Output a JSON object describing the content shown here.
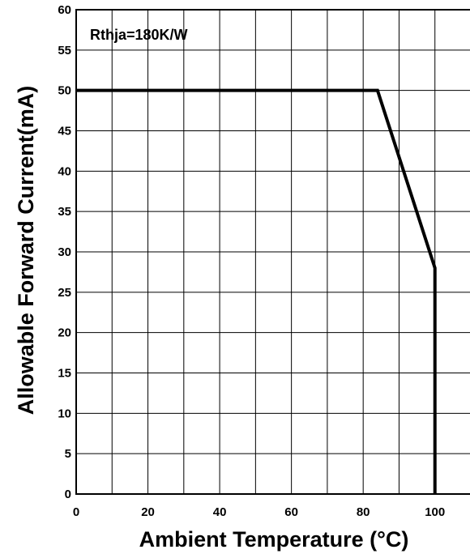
{
  "chart_data": {
    "type": "line",
    "xlabel": "Ambient Temperature (°C)",
    "ylabel": "Allowable Forward Current(mA)",
    "annotation": "Rthja=180K/W",
    "xlim": [
      0,
      110
    ],
    "ylim": [
      0,
      60
    ],
    "x_ticks": [
      0,
      20,
      40,
      60,
      80,
      100
    ],
    "y_ticks": [
      0,
      5,
      10,
      15,
      20,
      25,
      30,
      35,
      40,
      45,
      50,
      55,
      60
    ],
    "grid": true,
    "series": [
      {
        "x": [
          0,
          84,
          100,
          100
        ],
        "values": [
          50,
          50,
          28,
          0
        ]
      }
    ]
  }
}
